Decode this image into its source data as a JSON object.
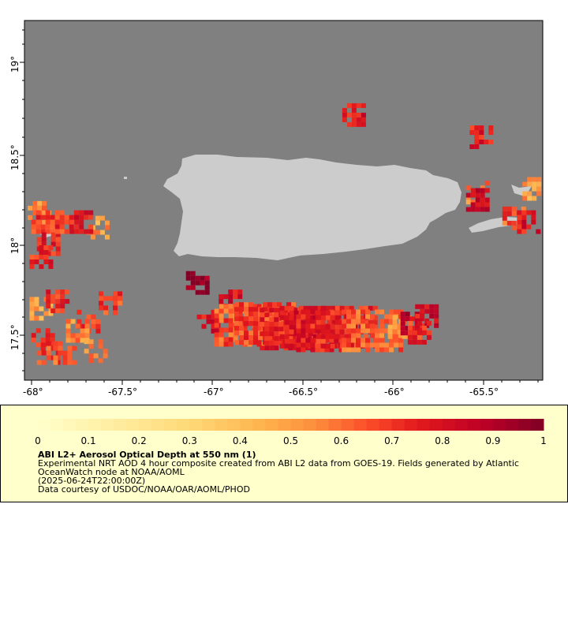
{
  "map": {
    "x_ticks": [
      "-68°",
      "-67.5°",
      "-67°",
      "-66.5°",
      "-66°",
      "-65.5°"
    ],
    "y_ticks": [
      "19°",
      "18.5°",
      "18°",
      "17.5°"
    ],
    "colors": {
      "ocean": "#808080",
      "land": "#cccccc",
      "panel_background": "#ffffcc"
    },
    "features": [
      "Puerto Rico",
      "Vieques",
      "Culebra",
      "Mona Island",
      "Desecheo Island"
    ]
  },
  "legend": {
    "colorbar_ticks": [
      "0",
      "0.1",
      "0.2",
      "0.3",
      "0.4",
      "0.5",
      "0.6",
      "0.7",
      "0.8",
      "0.9",
      "1"
    ],
    "colormap": "YlOrRd",
    "colorbar_range": [
      0,
      1
    ],
    "title": "ABI L2+ Aerosol Optical Depth at 550 nm (1)",
    "line1": "Experimental NRT AOD 4 hour composite created from ABI L2 data from GOES-19. Fields generated by Atlantic OceanWatch node at NOAA/AOML",
    "line2": "(2025-06-24T22:00:00Z)",
    "line3": "Data courtesy of USDOC/NOAA/OAR/AOML/PHOD"
  },
  "chart_data": {
    "type": "heatmap",
    "variable": "Aerosol Optical Depth at 550 nm",
    "xlim": [
      -68.05,
      -65.2
    ],
    "ylim": [
      17.3,
      19.25
    ],
    "xlabel": "",
    "ylabel": "",
    "colorbar_range": [
      0,
      1
    ],
    "patches": [
      {
        "lon": -67.98,
        "lat": 18.22,
        "aod": 0.55
      },
      {
        "lon": -67.96,
        "lat": 18.17,
        "aod": 0.7
      },
      {
        "lon": -67.93,
        "lat": 18.05,
        "aod": 0.75
      },
      {
        "lon": -67.97,
        "lat": 17.98,
        "aod": 0.72
      },
      {
        "lon": -67.83,
        "lat": 18.17,
        "aod": 0.7
      },
      {
        "lon": -67.66,
        "lat": 18.14,
        "aod": 0.5
      },
      {
        "lon": -67.75,
        "lat": 18.17,
        "aod": 0.75
      },
      {
        "lon": -67.97,
        "lat": 17.7,
        "aod": 0.5
      },
      {
        "lon": -67.88,
        "lat": 17.74,
        "aod": 0.72
      },
      {
        "lon": -67.96,
        "lat": 17.53,
        "aod": 0.7
      },
      {
        "lon": -67.93,
        "lat": 17.46,
        "aod": 0.68
      },
      {
        "lon": -67.84,
        "lat": 17.46,
        "aod": 0.62
      },
      {
        "lon": -67.71,
        "lat": 17.63,
        "aod": 0.7
      },
      {
        "lon": -67.77,
        "lat": 17.58,
        "aod": 0.55
      },
      {
        "lon": -67.59,
        "lat": 17.73,
        "aod": 0.68
      },
      {
        "lon": -67.67,
        "lat": 17.47,
        "aod": 0.55
      },
      {
        "lon": -67.11,
        "lat": 17.84,
        "aod": 0.98
      },
      {
        "lon": -67.05,
        "lat": 17.63,
        "aod": 0.78
      },
      {
        "lon": -66.93,
        "lat": 17.74,
        "aod": 0.8
      },
      {
        "lon": -66.85,
        "lat": 17.61,
        "aod": 0.65
      },
      {
        "lon": -66.74,
        "lat": 17.62,
        "aod": 0.68
      },
      {
        "lon": -66.6,
        "lat": 17.59,
        "aod": 0.75
      },
      {
        "lon": -66.49,
        "lat": 17.6,
        "aod": 0.78
      },
      {
        "lon": -66.4,
        "lat": 17.58,
        "aod": 0.76
      },
      {
        "lon": -66.29,
        "lat": 17.6,
        "aod": 0.72
      },
      {
        "lon": -66.15,
        "lat": 17.58,
        "aod": 0.62
      },
      {
        "lon": -66.0,
        "lat": 17.6,
        "aod": 0.55
      },
      {
        "lon": -65.93,
        "lat": 17.62,
        "aod": 0.85
      },
      {
        "lon": -65.85,
        "lat": 17.66,
        "aod": 0.8
      },
      {
        "lon": -65.89,
        "lat": 17.57,
        "aod": 0.72
      },
      {
        "lon": -66.25,
        "lat": 18.75,
        "aod": 0.78
      },
      {
        "lon": -65.55,
        "lat": 18.63,
        "aod": 0.75
      },
      {
        "lon": -65.57,
        "lat": 18.33,
        "aod": 0.55
      },
      {
        "lon": -65.57,
        "lat": 18.29,
        "aod": 0.85
      },
      {
        "lon": -65.26,
        "lat": 18.35,
        "aod": 0.5
      },
      {
        "lon": -65.37,
        "lat": 18.19,
        "aod": 0.65
      },
      {
        "lon": -65.29,
        "lat": 18.17,
        "aod": 0.78
      }
    ]
  }
}
